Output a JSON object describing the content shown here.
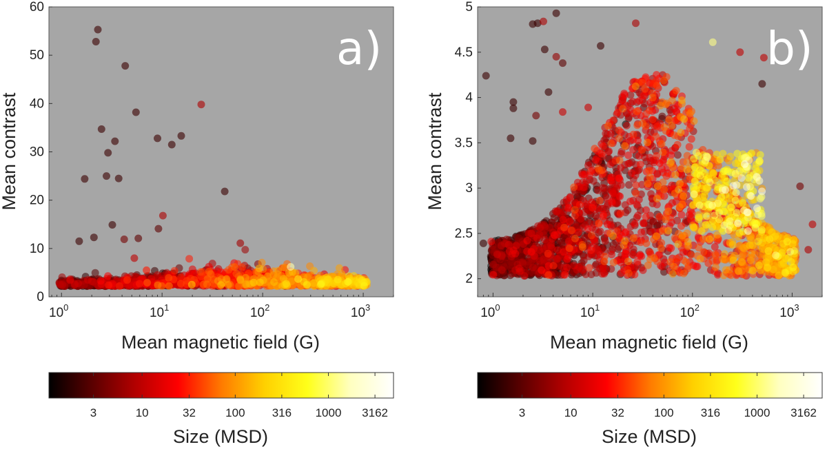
{
  "chart_data": [
    {
      "type": "scatter",
      "panel_label": "a)",
      "xlabel": "Mean magnetic field (G)",
      "ylabel": "Mean contrast",
      "xscale": "log",
      "xlim": [
        0.75,
        2000
      ],
      "ylim": [
        0,
        60
      ],
      "xticks": [
        {
          "base": "10",
          "exp": "0"
        },
        {
          "base": "10",
          "exp": "1"
        },
        {
          "base": "10",
          "exp": "2"
        },
        {
          "base": "10",
          "exp": "3"
        }
      ],
      "yticks": [
        "0",
        "10",
        "20",
        "30",
        "40",
        "50",
        "60"
      ],
      "ytick_values": [
        0,
        10,
        20,
        30,
        40,
        50,
        60
      ],
      "background": "#a6a6a6",
      "color_by": "Size (MSD)",
      "outliers": [
        {
          "x": 2.3,
          "y": 55.3,
          "size": 2
        },
        {
          "x": 2.2,
          "y": 52.8,
          "size": 2
        },
        {
          "x": 4.3,
          "y": 47.8,
          "size": 2
        },
        {
          "x": 24.5,
          "y": 39.8,
          "size": 8
        },
        {
          "x": 5.5,
          "y": 38.2,
          "size": 2
        },
        {
          "x": 2.5,
          "y": 34.7,
          "size": 2
        },
        {
          "x": 15.5,
          "y": 33.3,
          "size": 2
        },
        {
          "x": 9.0,
          "y": 32.8,
          "size": 2
        },
        {
          "x": 3.4,
          "y": 32.2,
          "size": 2
        },
        {
          "x": 12.5,
          "y": 31.5,
          "size": 2
        },
        {
          "x": 2.9,
          "y": 29.8,
          "size": 2
        },
        {
          "x": 2.8,
          "y": 25.0,
          "size": 2
        },
        {
          "x": 3.7,
          "y": 24.5,
          "size": 2
        },
        {
          "x": 1.7,
          "y": 24.4,
          "size": 2
        },
        {
          "x": 42,
          "y": 21.8,
          "size": 2
        },
        {
          "x": 10.2,
          "y": 16.8,
          "size": 8
        },
        {
          "x": 3.2,
          "y": 14.9,
          "size": 2
        },
        {
          "x": 9.2,
          "y": 14.1,
          "size": 3
        },
        {
          "x": 2.1,
          "y": 12.3,
          "size": 2
        },
        {
          "x": 5.8,
          "y": 12.1,
          "size": 3
        },
        {
          "x": 4.2,
          "y": 11.9,
          "size": 4
        },
        {
          "x": 60,
          "y": 11.1,
          "size": 7
        },
        {
          "x": 1.5,
          "y": 11.5,
          "size": 2
        },
        {
          "x": 5.3,
          "y": 8.0,
          "size": 10
        },
        {
          "x": 190,
          "y": 6.2,
          "size": 1500
        },
        {
          "x": 7.0,
          "y": 5.5,
          "size": 30
        }
      ]
    },
    {
      "type": "scatter",
      "panel_label": "b)",
      "xlabel": "Mean magnetic field (G)",
      "ylabel": "Mean contrast",
      "xscale": "log",
      "xlim": [
        0.7,
        2000
      ],
      "ylim": [
        1.8,
        5
      ],
      "xticks": [
        {
          "base": "10",
          "exp": "0"
        },
        {
          "base": "10",
          "exp": "1"
        },
        {
          "base": "10",
          "exp": "2"
        },
        {
          "base": "10",
          "exp": "3"
        }
      ],
      "yticks": [
        "2",
        "2.5",
        "3",
        "3.5",
        "4",
        "4.5",
        "5"
      ],
      "ytick_values": [
        2,
        2.5,
        3,
        3.5,
        4,
        4.5,
        5
      ],
      "background": "#a6a6a6",
      "color_by": "Size (MSD)",
      "outliers": [
        {
          "x": 4.3,
          "y": 4.93,
          "size": 2
        },
        {
          "x": 2.5,
          "y": 4.81,
          "size": 2
        },
        {
          "x": 2.8,
          "y": 4.82,
          "size": 2
        },
        {
          "x": 3.2,
          "y": 4.84,
          "size": 8
        },
        {
          "x": 0.85,
          "y": 4.24,
          "size": 2
        },
        {
          "x": 3.3,
          "y": 4.53,
          "size": 2
        },
        {
          "x": 4.3,
          "y": 4.45,
          "size": 6
        },
        {
          "x": 5.0,
          "y": 4.38,
          "size": 3
        },
        {
          "x": 160,
          "y": 4.61,
          "size": 1200
        },
        {
          "x": 300,
          "y": 4.5,
          "size": 10
        },
        {
          "x": 520,
          "y": 4.44,
          "size": 10
        },
        {
          "x": 500,
          "y": 4.15,
          "size": 2
        },
        {
          "x": 27,
          "y": 4.82,
          "size": 8
        },
        {
          "x": 12,
          "y": 4.57,
          "size": 2
        },
        {
          "x": 5.0,
          "y": 3.84,
          "size": 12
        },
        {
          "x": 9.0,
          "y": 3.89,
          "size": 12
        },
        {
          "x": 1.6,
          "y": 3.95,
          "size": 2
        },
        {
          "x": 1.6,
          "y": 3.88,
          "size": 2
        },
        {
          "x": 2.7,
          "y": 3.8,
          "size": 4
        },
        {
          "x": 3.6,
          "y": 4.06,
          "size": 2
        },
        {
          "x": 1.5,
          "y": 3.55,
          "size": 2
        },
        {
          "x": 2.5,
          "y": 3.52,
          "size": 2
        },
        {
          "x": 0.8,
          "y": 2.39,
          "size": 2
        },
        {
          "x": 1600,
          "y": 2.6,
          "size": 10
        },
        {
          "x": 1450,
          "y": 2.32,
          "size": 8
        },
        {
          "x": 1200,
          "y": 3.02,
          "size": 4
        }
      ]
    }
  ],
  "colorbar": {
    "label": "Size (MSD)",
    "ticks": [
      "3",
      "10",
      "32",
      "100",
      "316",
      "1000",
      "3162"
    ],
    "tick_values": [
      3,
      10,
      32,
      100,
      316,
      1000,
      3162
    ],
    "range": [
      1,
      5000
    ],
    "colormap": [
      "#000000",
      "#5a0000",
      "#b20000",
      "#ff0000",
      "#ff7a00",
      "#ffd000",
      "#ffff1a",
      "#ffffc0",
      "#ffffff"
    ]
  }
}
